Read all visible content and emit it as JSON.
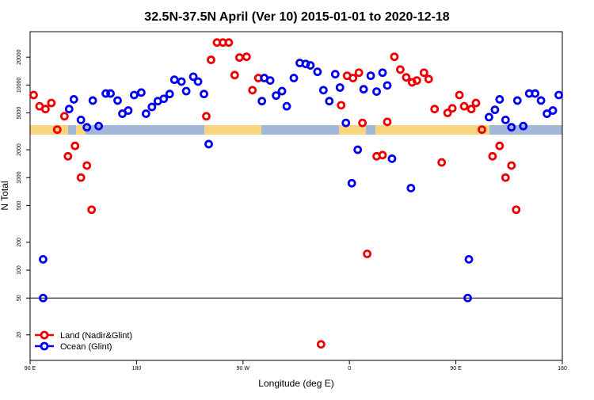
{
  "chart_data": {
    "type": "scatter",
    "title": "32.5N-37.5N April (Ver 10)   2015-01-01 to 2020-12-18",
    "x_label": "Longitude (deg E)",
    "y_label": "N Total",
    "log_y": true,
    "legend": "bottom-left",
    "xlim": [
      90,
      540
    ],
    "xticks": [
      {
        "value": 90,
        "label": "90 E"
      },
      180,
      {
        "value": 270,
        "label": "90 W"
      },
      {
        "value": 360,
        "label": "0"
      },
      {
        "value": 450,
        "label": "90 E"
      },
      {
        "value": 540,
        "label": "180"
      }
    ],
    "ylim": [
      10.6,
      37700
    ],
    "yticks": [
      20,
      50,
      100,
      200,
      500,
      1000,
      2000,
      5000,
      10000,
      20000
    ],
    "reference_line": 50,
    "series": [
      {
        "name": "Land (Nadir&Glint)",
        "color": "#ee0000",
        "x": [
          93,
          98,
          103,
          108,
          113,
          119,
          122,
          128,
          133,
          138,
          142,
          239,
          243,
          248,
          253,
          258,
          263,
          267,
          273,
          278,
          283,
          336,
          353,
          358,
          363,
          368,
          371,
          375,
          383,
          388,
          392,
          398,
          403,
          408,
          413,
          417,
          423,
          427,
          432,
          438,
          443,
          447,
          453,
          457,
          463,
          467,
          472,
          481,
          487,
          492,
          497,
          501
        ],
        "values": [
          7800,
          5900,
          5500,
          6400,
          3300,
          4600,
          1700,
          2200,
          1000,
          1350,
          450,
          4600,
          18700,
          28800,
          28800,
          28800,
          12800,
          19800,
          20200,
          8800,
          11900,
          15.8,
          6050,
          12600,
          11900,
          13600,
          3900,
          150,
          1700,
          1750,
          4000,
          20200,
          14700,
          12100,
          10700,
          11200,
          13600,
          11600,
          5500,
          1460,
          5000,
          5600,
          7800,
          5900,
          5500,
          6400,
          3300,
          1700,
          2200,
          1000,
          1350,
          450
        ]
      },
      {
        "name": "Ocean (Glint)",
        "color": "#0000ee",
        "x": [
          101,
          101,
          123,
          127,
          133,
          138,
          143,
          148,
          154,
          158,
          164,
          168,
          173,
          178,
          184,
          188,
          193,
          198,
          203,
          208,
          212,
          218,
          222,
          228,
          232,
          237,
          241,
          286,
          288,
          293,
          298,
          303,
          307,
          313,
          318,
          323,
          327,
          333,
          338,
          343,
          348,
          352,
          357,
          362,
          367,
          372,
          378,
          383,
          388,
          392,
          396,
          412,
          461,
          460,
          478,
          483,
          487,
          492,
          497,
          502,
          507,
          512,
          517,
          522,
          527,
          532,
          537
        ],
        "values": [
          131,
          50,
          5500,
          7000,
          4200,
          3500,
          6800,
          3600,
          8100,
          8100,
          6800,
          4900,
          5300,
          7800,
          8300,
          4900,
          5800,
          6700,
          7100,
          8000,
          11400,
          10900,
          8600,
          12300,
          10900,
          8000,
          2300,
          6700,
          11900,
          11200,
          7700,
          8600,
          5900,
          11900,
          17300,
          16900,
          16300,
          13900,
          8800,
          6700,
          13100,
          9400,
          3900,
          870,
          2000,
          9000,
          12600,
          8500,
          13600,
          9900,
          1600,
          770,
          131,
          50,
          4500,
          5400,
          7000,
          4200,
          3500,
          6800,
          3600,
          8100,
          8100,
          6800,
          4900,
          5300,
          7800
        ]
      }
    ]
  }
}
